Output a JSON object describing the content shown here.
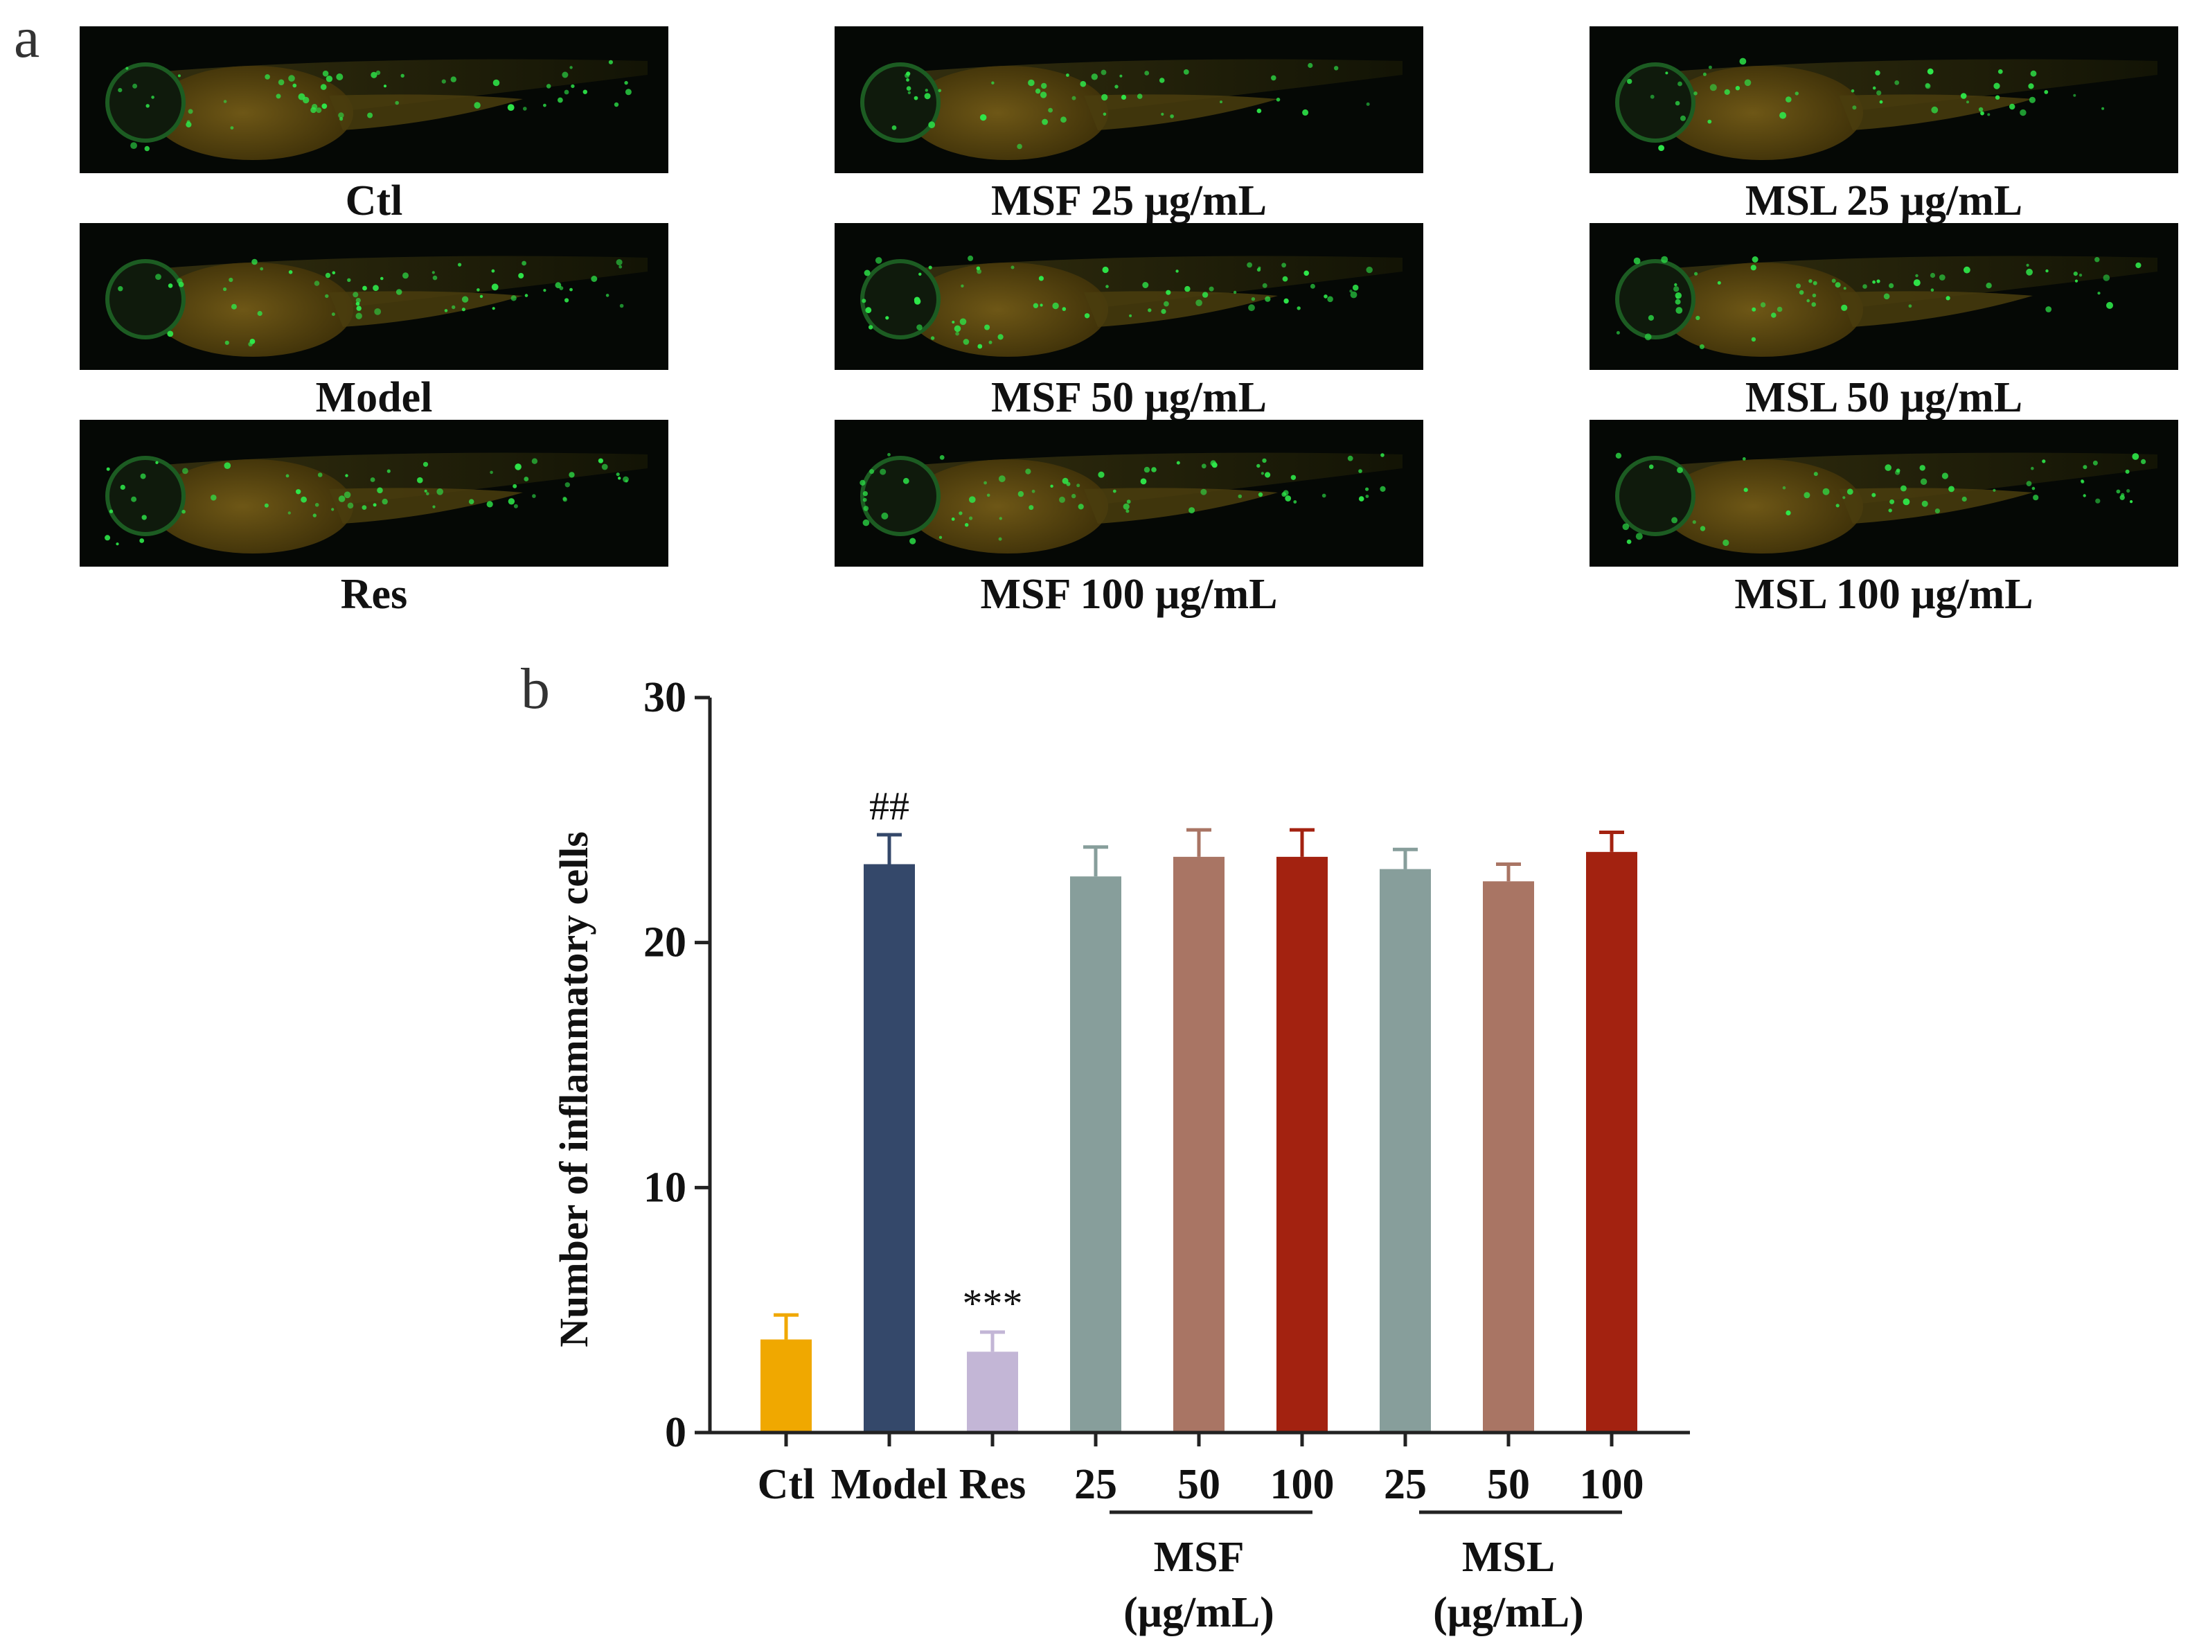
{
  "panel_a": {
    "letter": "a",
    "images": [
      {
        "caption": "Ctl",
        "depicts": "zebrafish larva fluorescence micrograph",
        "glow": "#2ee84a"
      },
      {
        "caption": "MSF 25 μg/mL",
        "depicts": "zebrafish larva fluorescence micrograph",
        "glow": "#2ee84a"
      },
      {
        "caption": "MSL 25 μg/mL",
        "depicts": "zebrafish larva fluorescence micrograph",
        "glow": "#2ee84a"
      },
      {
        "caption": "Model",
        "depicts": "zebrafish larva fluorescence micrograph",
        "glow": "#2ee84a"
      },
      {
        "caption": "MSF 50 μg/mL",
        "depicts": "zebrafish larva fluorescence micrograph",
        "glow": "#2ee84a"
      },
      {
        "caption": "MSL 50 μg/mL",
        "depicts": "zebrafish larva fluorescence micrograph",
        "glow": "#2ee84a"
      },
      {
        "caption": "Res",
        "depicts": "zebrafish larva fluorescence micrograph",
        "glow": "#2ee84a"
      },
      {
        "caption": "MSF 100 μg/mL",
        "depicts": "zebrafish larva fluorescence micrograph",
        "glow": "#2ee84a"
      },
      {
        "caption": "MSL 100 μg/mL",
        "depicts": "zebrafish larva fluorescence micrograph",
        "glow": "#2ee84a"
      }
    ]
  },
  "chart_data": {
    "type": "bar",
    "panel_letter": "b",
    "ylabel": "Number of inflammatory cells",
    "ylim": [
      0,
      30
    ],
    "yticks": [
      0,
      10,
      20,
      30
    ],
    "categories": [
      "Ctl",
      "Model",
      "Res",
      "25",
      "50",
      "100",
      "25",
      "50",
      "100"
    ],
    "values": [
      3.8,
      23.2,
      3.3,
      22.7,
      23.5,
      23.5,
      23.0,
      22.5,
      23.7
    ],
    "errors": [
      1.0,
      1.2,
      0.8,
      1.2,
      1.1,
      1.1,
      0.8,
      0.7,
      0.8
    ],
    "colors": [
      "#f0a800",
      "#34486a",
      "#c3b6d6",
      "#879e9b",
      "#a97564",
      "#a32210",
      "#879e9b",
      "#a97564",
      "#a32210"
    ],
    "annotations": [
      {
        "bar_index": 1,
        "text": "##"
      },
      {
        "bar_index": 2,
        "text": "***"
      }
    ],
    "groups": [
      {
        "label": "MSF",
        "unit": "(μg/mL)",
        "bar_indices": [
          3,
          4,
          5
        ]
      },
      {
        "label": "MSL",
        "unit": "(μg/mL)",
        "bar_indices": [
          6,
          7,
          8
        ]
      }
    ]
  }
}
